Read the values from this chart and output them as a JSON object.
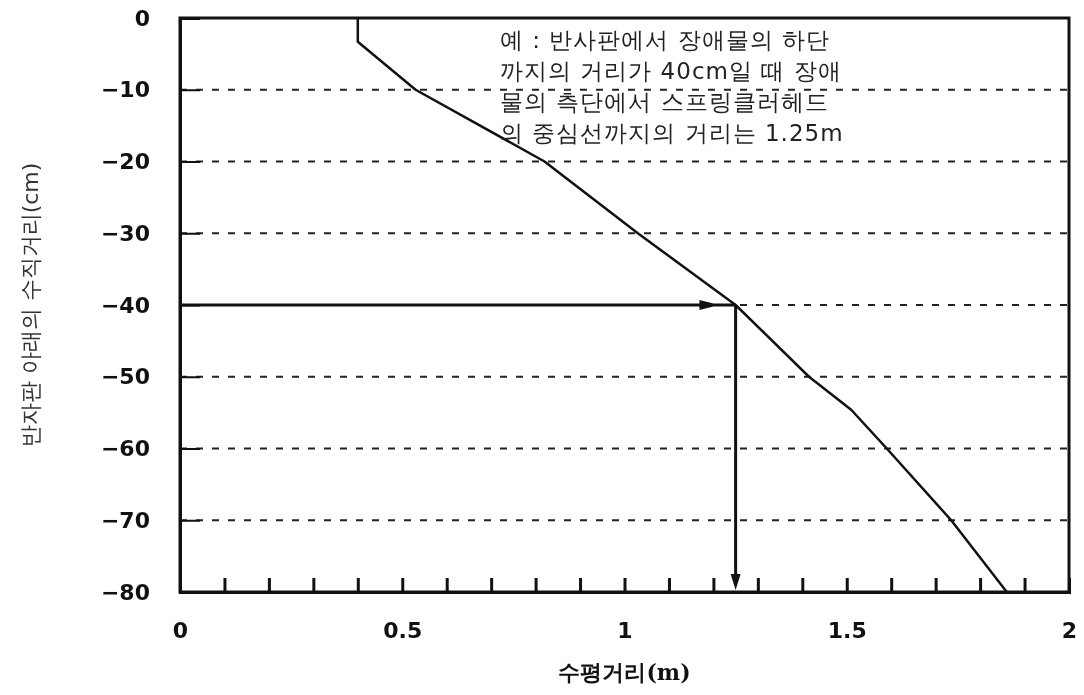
{
  "chart_data": {
    "type": "line",
    "xlabel": "수평거리(m)",
    "ylabel": "반자판 아래의 수직거리(cm)",
    "x": [
      0.4,
      0.4,
      0.53,
      0.82,
      1.03,
      1.25,
      1.415,
      1.51,
      1.59,
      1.735,
      1.86
    ],
    "series": [
      {
        "color": "#111111",
        "values": [
          0,
          -3.3,
          -10,
          -20,
          -30,
          -40,
          -50,
          -54.6,
          -60,
          -70,
          -80
        ]
      }
    ],
    "xlim": [
      0,
      2
    ],
    "ylim": [
      -80,
      0
    ],
    "xticks": [
      0,
      {
        "value": 0.1,
        "label": null
      },
      {
        "value": 0.2,
        "label": null
      },
      {
        "value": 0.3,
        "label": null
      },
      {
        "value": 0.4,
        "label": null
      },
      0.5,
      {
        "value": 0.6,
        "label": null
      },
      {
        "value": 0.7,
        "label": null
      },
      {
        "value": 0.8,
        "label": null
      },
      {
        "value": 0.9,
        "label": null
      },
      1,
      {
        "value": 1.1,
        "label": null
      },
      {
        "value": 1.2,
        "label": null
      },
      {
        "value": 1.3,
        "label": null
      },
      {
        "value": 1.4,
        "label": null
      },
      1.5,
      {
        "value": 1.6,
        "label": null
      },
      {
        "value": 1.7,
        "label": null
      },
      {
        "value": 1.8,
        "label": null
      },
      {
        "value": 1.9,
        "label": null
      },
      2
    ],
    "yticks": [
      -80,
      -70,
      -60,
      -50,
      -40,
      -30,
      -20,
      -10,
      0
    ],
    "grid": "y",
    "marker": "none",
    "line_style": "solid",
    "annotations": [
      "예 : 반사판에서 장애물의 하단\n까지의 거리가 40cm일 때 장애\n물의 측단에서 스프링클러헤드\n의 중심선까지의 거리는 1.25m"
    ]
  }
}
